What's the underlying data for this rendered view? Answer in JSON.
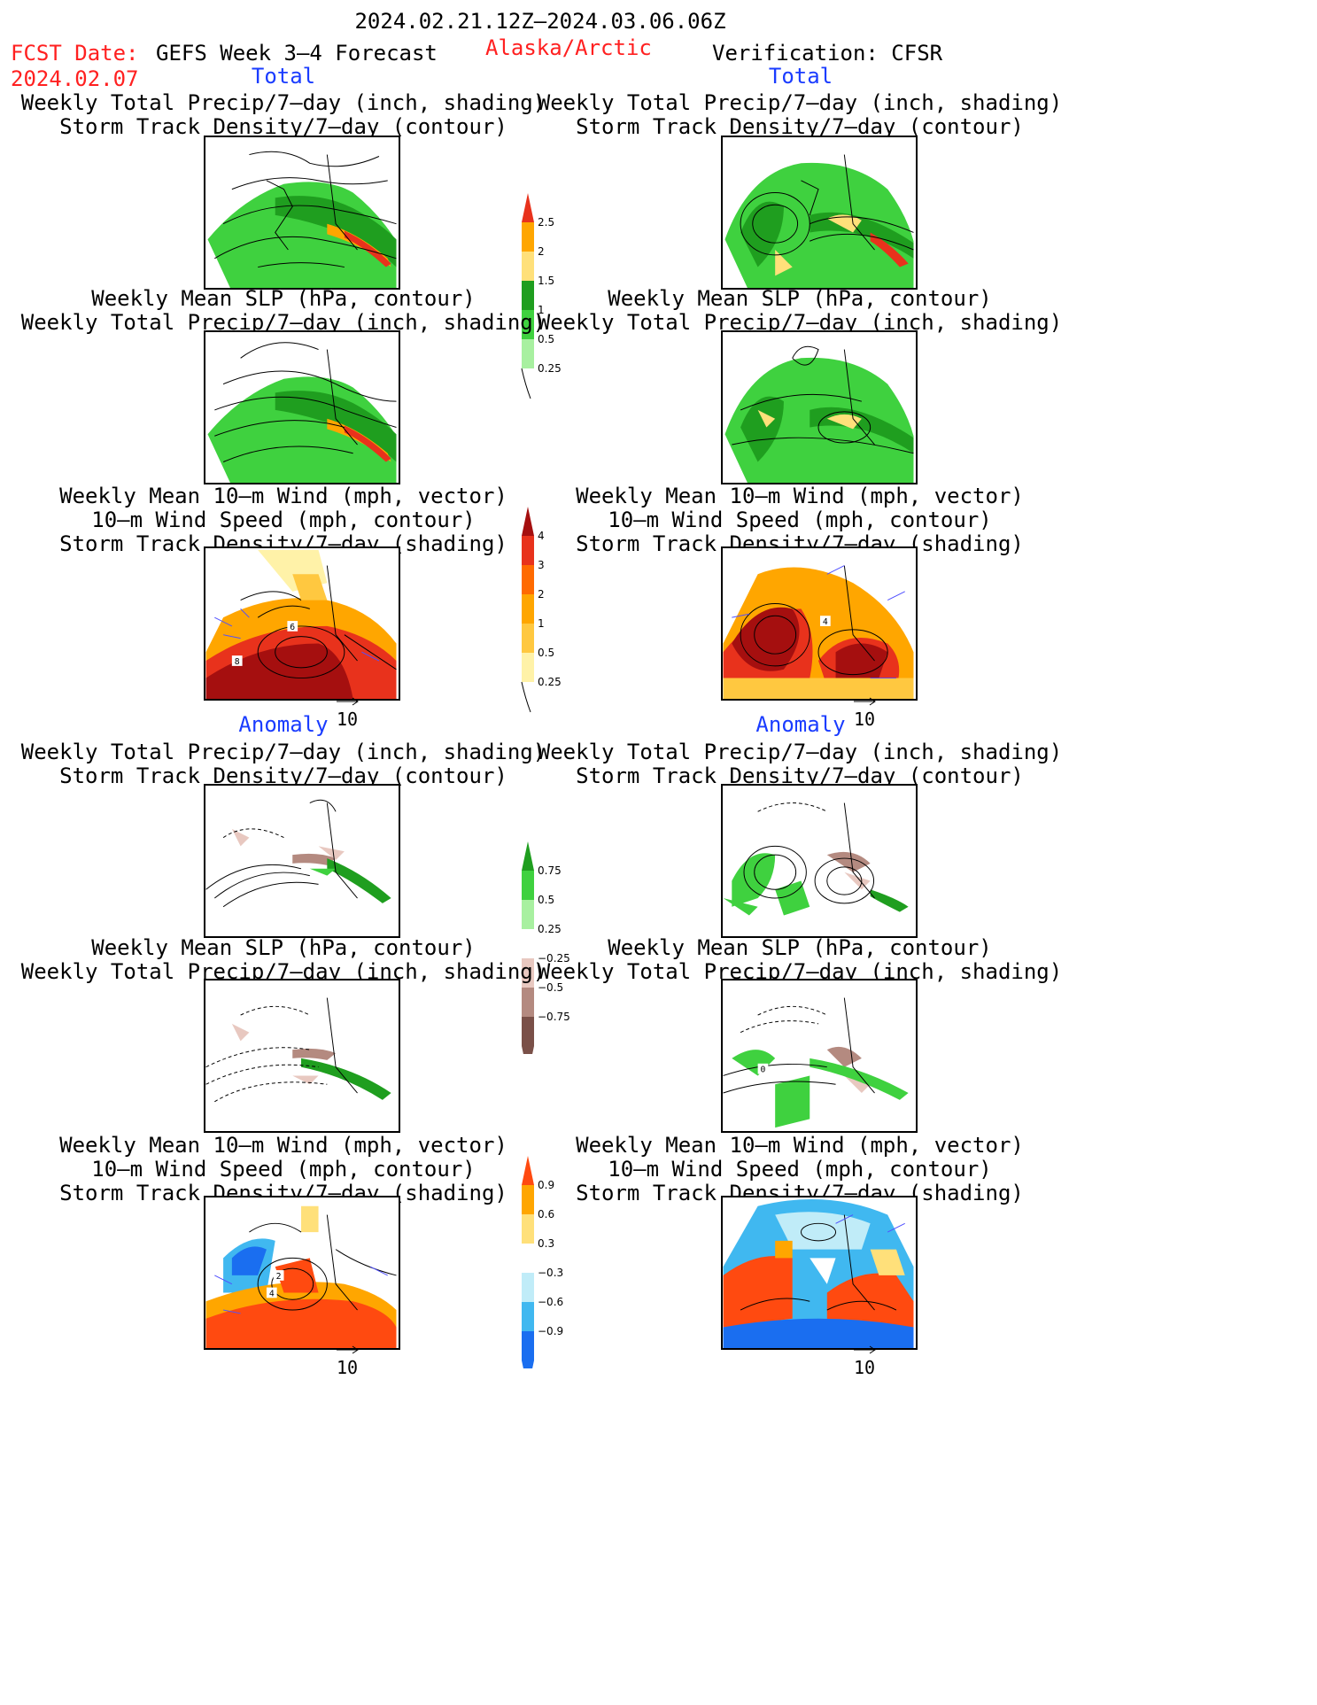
{
  "header": {
    "date_range": "2024.02.21.12Z–2024.03.06.06Z",
    "fcst_date_label": "FCST Date:",
    "fcst_date_value": "2024.02.07",
    "forecast_label": "GEFS Week 3–4 Forecast",
    "region": "Alaska/Arctic",
    "verification": "Verification: CFSR"
  },
  "sections": {
    "total": "Total",
    "anomaly": "Anomaly"
  },
  "titles": {
    "precip_track": [
      "Weekly Total Precip/7–day (inch, shading)",
      "Storm Track Density/7–day (contour)"
    ],
    "slp_precip": [
      "Weekly Mean SLP (hPa, contour)",
      "Weekly Total Precip/7–day (inch, shading)"
    ],
    "wind_track": [
      "Weekly Mean 10–m Wind (mph, vector)",
      "10–m Wind Speed (mph, contour)",
      "Storm Track Density/7–day (shading)"
    ]
  },
  "vector_ref": "10",
  "colorbars": {
    "precip_total": {
      "labels": [
        "2.5",
        "2",
        "1.5",
        "1",
        "0.5",
        "0.25"
      ],
      "colors": [
        "#e8321c",
        "#ffa600",
        "#ffe07a",
        "#1f9e1f",
        "#3fd13f",
        "#a8f0a0"
      ]
    },
    "track_total": {
      "labels": [
        "4",
        "3",
        "2",
        "1",
        "0.5",
        "0.25"
      ],
      "colors": [
        "#a50f0f",
        "#e8321c",
        "#ff6a00",
        "#ffa600",
        "#ffc840",
        "#fff2a8"
      ]
    },
    "precip_anom": {
      "labels": [
        "0.75",
        "0.5",
        "0.25",
        "−0.25",
        "−0.5",
        "−0.75"
      ],
      "colors": [
        "#1f9e1f",
        "#3fd13f",
        "#a8f0a0",
        "#ffffff",
        "#e8c8c0",
        "#b48a80",
        "#7a5048"
      ]
    },
    "track_anom": {
      "labels": [
        "0.9",
        "0.6",
        "0.3",
        "−0.3",
        "−0.6",
        "−0.9"
      ],
      "colors": [
        "#ff4a10",
        "#ffa600",
        "#ffe07a",
        "#ffffff",
        "#c0ecf8",
        "#40b8f0",
        "#1a6ef0"
      ]
    }
  },
  "panel_labels": {
    "wind_total_fcst": "8",
    "wind_total_fcst_b": "6",
    "wind_total_ver": "4",
    "wind_anom_fcst": "4",
    "wind_anom_fcst_b": "2",
    "slp_anom_ver": "0"
  }
}
